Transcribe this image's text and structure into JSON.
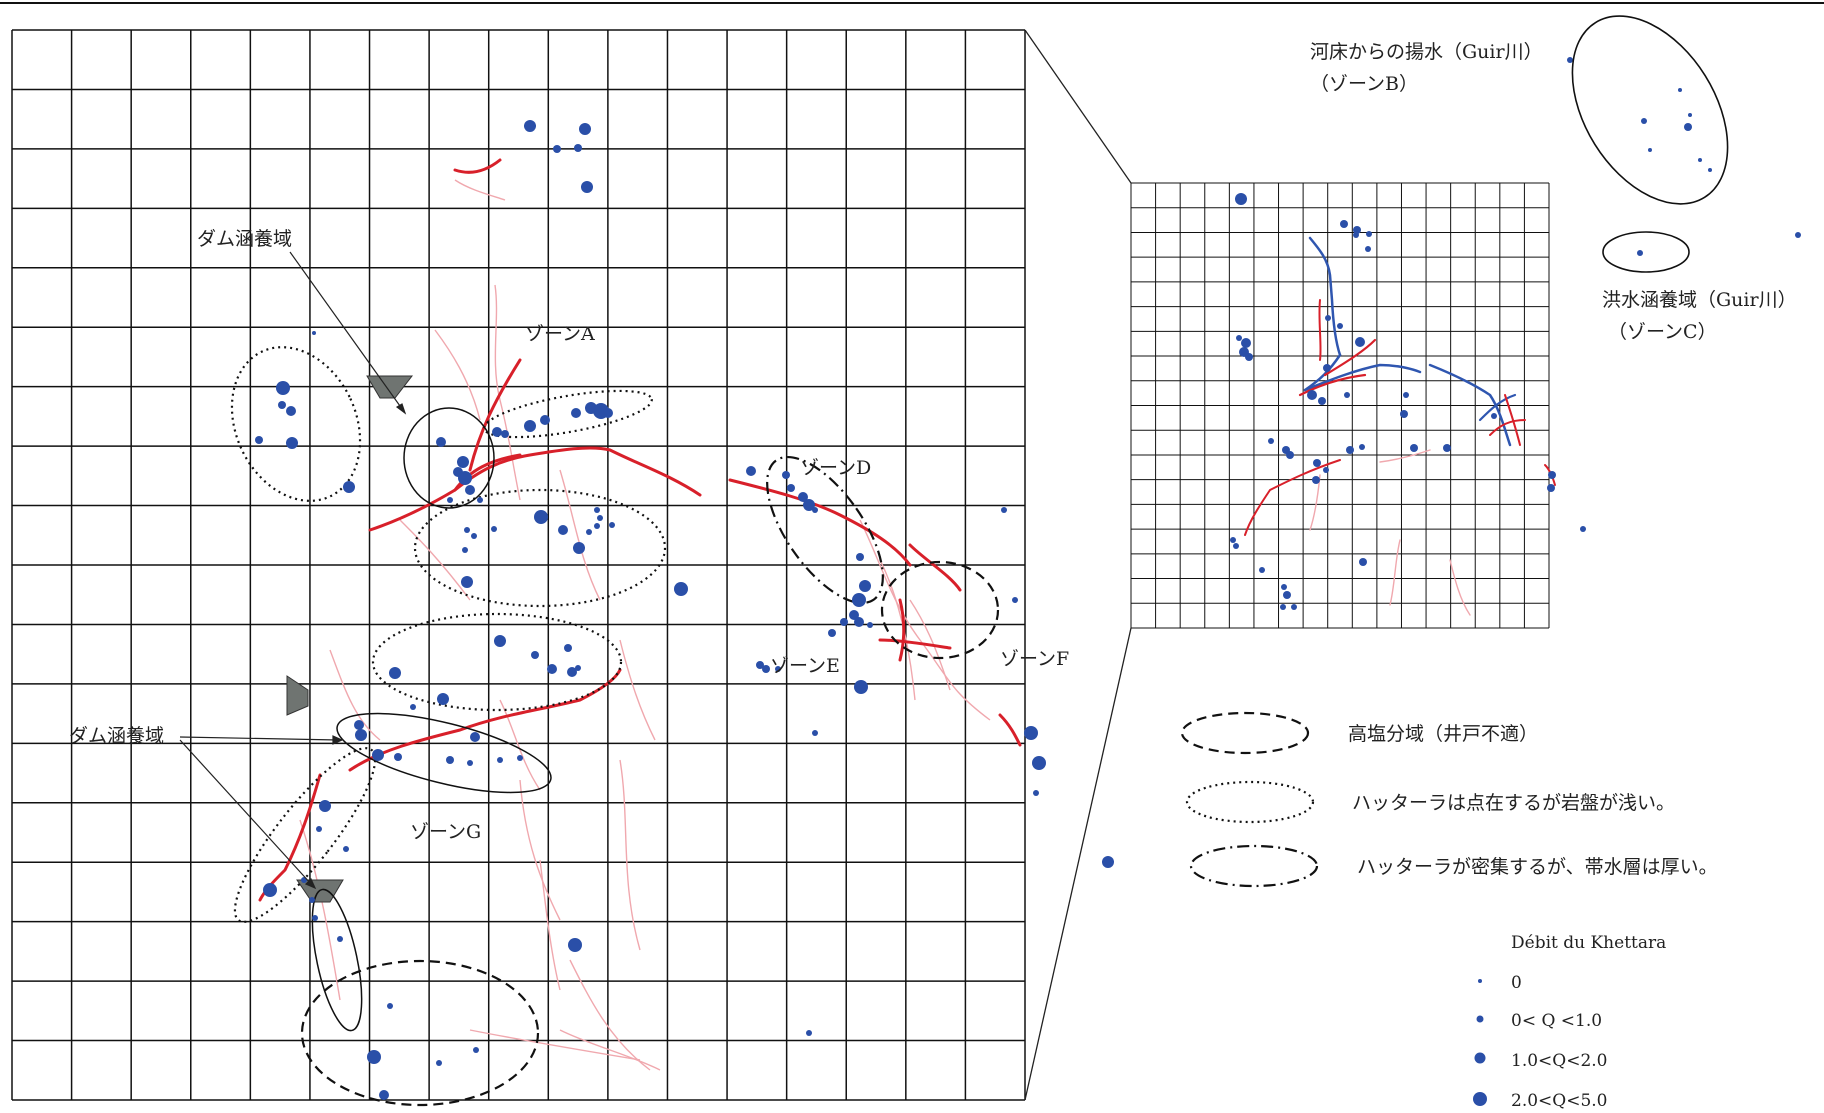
{
  "zones": {
    "a": "ゾーンA",
    "b": "（ゾーンB）",
    "c": "（ゾーンC）",
    "d": "ゾーンD",
    "e": "ゾーンE",
    "f": "ゾーンF",
    "g": "ゾーンG"
  },
  "labels": {
    "dam_catchment_1": "ダム涵養域",
    "dam_catchment_2": "ダム涵養域",
    "riverbed_pumping": "河床からの揚水（Guir川）",
    "flood_catchment": "洪水涵養域（Guir川）"
  },
  "legend": {
    "items": [
      {
        "style": "dashed",
        "text": "高塩分域（井戸不適）"
      },
      {
        "style": "dotted",
        "text": "ハッターラは点在するが岩盤が浅い。"
      },
      {
        "style": "dash-dot",
        "text": "ハッターラが密集するが、帯水層は厚い。"
      }
    ]
  },
  "discharge_legend": {
    "title": "Débit du Khettara",
    "classes": [
      {
        "label": "0"
      },
      {
        "label": "0< Q <1.0"
      },
      {
        "label": "1.0<Q<2.0"
      },
      {
        "label": "2.0<Q<5.0"
      }
    ]
  },
  "colors": {
    "well": "#2a4fa8",
    "khettara_main": "#d8202a",
    "khettara_minor": "#f0a8ae",
    "inset_channel": "#2f56b0",
    "dam": "#6f7471",
    "grid": "#111111"
  }
}
